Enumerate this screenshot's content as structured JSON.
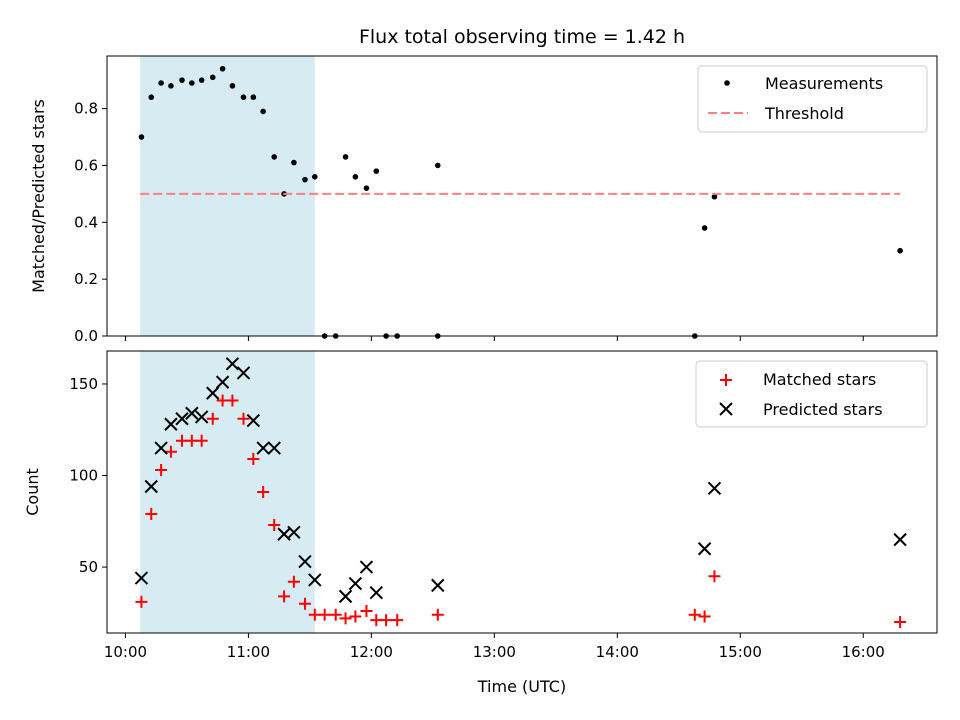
{
  "chart_data": {
    "type": "scatter",
    "title": "Flux total observing time = 1.42 h",
    "xlabel": "Time (UTC)",
    "x_ticks": [
      "10:00",
      "11:00",
      "12:00",
      "13:00",
      "14:00",
      "15:00",
      "16:00"
    ],
    "x_range_hours": [
      9.85,
      16.6
    ],
    "shaded_region": {
      "start_hours": 10.12,
      "end_hours": 11.54,
      "color": "#add8e6"
    },
    "top_panel": {
      "ylabel": "Matched/Predicted stars",
      "ylim": [
        0,
        0.985
      ],
      "y_ticks": [
        "0.0",
        "0.2",
        "0.4",
        "0.6",
        "0.8"
      ],
      "y_tick_values": [
        0,
        0.2,
        0.4,
        0.6,
        0.8
      ],
      "threshold": {
        "value": 0.5,
        "x_start_hours": 10.12,
        "x_end_hours": 16.3,
        "color": "#ff7f7f"
      },
      "legend": [
        {
          "label": "Measurements",
          "marker": "dot",
          "color": "#000000"
        },
        {
          "label": "Threshold",
          "marker": "dash",
          "color": "#ff7f7f"
        }
      ],
      "series": [
        {
          "name": "Measurements",
          "x": [
            10.13,
            10.21,
            10.29,
            10.37,
            10.46,
            10.54,
            10.62,
            10.71,
            10.79,
            10.87,
            10.96,
            11.04,
            11.12,
            11.21,
            11.29,
            11.37,
            11.46,
            11.54,
            11.62,
            11.71,
            11.79,
            11.87,
            11.96,
            12.04,
            12.12,
            12.21,
            12.54,
            12.54,
            14.63,
            14.71,
            14.79,
            16.3
          ],
          "y": [
            0.7,
            0.84,
            0.89,
            0.88,
            0.9,
            0.89,
            0.9,
            0.91,
            0.94,
            0.88,
            0.84,
            0.84,
            0.79,
            0.63,
            0.5,
            0.61,
            0.55,
            0.56,
            0.0,
            0.0,
            0.63,
            0.56,
            0.52,
            0.58,
            0.0,
            0.0,
            0.6,
            0.0,
            0.0,
            0.38,
            0.49,
            0.3
          ]
        }
      ]
    },
    "bottom_panel": {
      "ylabel": "Count",
      "ylim": [
        14,
        168
      ],
      "y_ticks": [
        "50",
        "100",
        "150"
      ],
      "y_tick_values": [
        50,
        100,
        150
      ],
      "legend": [
        {
          "label": "Matched stars",
          "marker": "plus",
          "color": "#ff0000"
        },
        {
          "label": "Predicted stars",
          "marker": "x",
          "color": "#000000"
        }
      ],
      "series": [
        {
          "name": "Matched stars",
          "x": [
            10.13,
            10.21,
            10.29,
            10.37,
            10.46,
            10.54,
            10.62,
            10.71,
            10.79,
            10.87,
            10.96,
            11.04,
            11.12,
            11.21,
            11.29,
            11.37,
            11.46,
            11.54,
            11.62,
            11.71,
            11.79,
            11.87,
            11.96,
            12.04,
            12.12,
            12.21,
            12.54,
            14.63,
            14.71,
            14.79,
            16.3
          ],
          "y": [
            31,
            79,
            103,
            113,
            119,
            119,
            119,
            131,
            141,
            141,
            131,
            109,
            91,
            73,
            34,
            42,
            30,
            24,
            24,
            24,
            22,
            23,
            26,
            21,
            21,
            21,
            24,
            24,
            23,
            45,
            20
          ]
        },
        {
          "name": "Predicted stars",
          "x": [
            10.13,
            10.21,
            10.29,
            10.37,
            10.46,
            10.54,
            10.62,
            10.71,
            10.79,
            10.87,
            10.96,
            11.04,
            11.12,
            11.21,
            11.29,
            11.37,
            11.46,
            11.54,
            11.79,
            11.87,
            11.96,
            12.04,
            12.54,
            14.71,
            14.79,
            16.3
          ],
          "y": [
            44,
            94,
            115,
            128,
            131,
            134,
            132,
            145,
            151,
            161,
            156,
            130,
            115,
            115,
            68,
            69,
            53,
            43,
            34,
            41,
            50,
            36,
            40,
            60,
            93,
            65
          ]
        }
      ]
    }
  }
}
